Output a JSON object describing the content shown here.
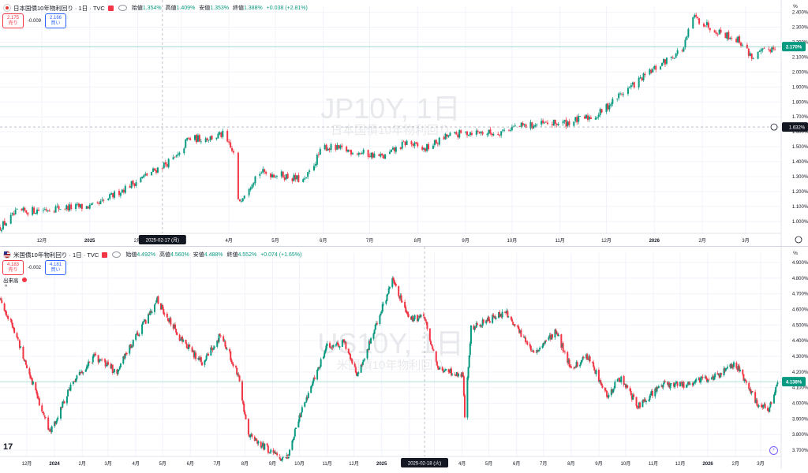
{
  "colors": {
    "up": "#089981",
    "down": "#f23645",
    "grid": "#f0f3fa",
    "axis": "#131722",
    "label_bg": "#131722",
    "crosshair": "#9598a1"
  },
  "chart_data": [
    {
      "type": "candlestick",
      "symbol": "JP10Y",
      "title": "日本国債10年物利回り · 1日 · TVC",
      "watermark": {
        "main": "JP10Y, 1日",
        "sub": "日本国債10年物利回り"
      },
      "legend": {
        "o_label": "始値",
        "o": "1.354%",
        "h_label": "高値",
        "h": "1.409%",
        "l_label": "安値",
        "l": "1.353%",
        "c_label": "終値",
        "c": "1.388%",
        "change": "+0.038 (+2.81%)"
      },
      "quotes": {
        "sell_value": "2.175",
        "sell_label": "売り",
        "spread": "-0.009",
        "buy_value": "2.166",
        "buy_label": "買い"
      },
      "y_unit": "%",
      "ylim": [
        0.92,
        2.44
      ],
      "y_ticks": [
        "2.400%",
        "2.300%",
        "2.200%",
        "2.100%",
        "2.000%",
        "1.900%",
        "1.800%",
        "1.700%",
        "1.600%",
        "1.500%",
        "1.400%",
        "1.300%",
        "1.200%",
        "1.100%",
        "1.000%"
      ],
      "y_tick_values": [
        2.4,
        2.3,
        2.2,
        2.1,
        2.0,
        1.9,
        1.8,
        1.7,
        1.6,
        1.5,
        1.4,
        1.3,
        1.2,
        1.1,
        1.0
      ],
      "x_ticks": [
        "12月",
        "2025",
        "2月",
        "3月",
        "4月",
        "5月",
        "6月",
        "7月",
        "8月",
        "9月",
        "10月",
        "11月",
        "12月",
        "2026",
        "2月",
        "3月"
      ],
      "x_tick_dates": [
        "2024-12-01",
        "2025-01-01",
        "2025-02-01",
        "2025-03-01",
        "2025-04-01",
        "2025-05-01",
        "2025-06-01",
        "2025-07-01",
        "2025-08-01",
        "2025-09-01",
        "2025-10-01",
        "2025-11-01",
        "2025-12-01",
        "2026-01-01",
        "2026-02-01",
        "2026-03-01"
      ],
      "x_range": [
        "2024-11-04",
        "2026-03-24"
      ],
      "crosshair": {
        "date_label": "2025-02-17 (月)",
        "date": "2025-02-17",
        "price_label": "1.632%",
        "price": 1.632
      },
      "last_price": {
        "label": "2.170%",
        "value": 2.17
      },
      "path_dates": [
        "2024-11-04",
        "2024-11-15",
        "2024-12-10",
        "2025-01-05",
        "2025-01-20",
        "2025-02-10",
        "2025-02-28",
        "2025-03-05",
        "2025-03-20",
        "2025-03-28",
        "2025-04-04",
        "2025-04-07",
        "2025-04-20",
        "2025-05-05",
        "2025-05-20",
        "2025-06-01",
        "2025-06-20",
        "2025-07-10",
        "2025-07-25",
        "2025-08-05",
        "2025-08-20",
        "2025-09-05",
        "2025-09-20",
        "2025-10-01",
        "2025-10-20",
        "2025-11-05",
        "2025-11-25",
        "2025-12-10",
        "2026-01-05",
        "2026-01-20",
        "2026-01-26",
        "2026-02-10",
        "2026-02-25",
        "2026-03-05",
        "2026-03-20"
      ],
      "path_values": [
        0.96,
        1.06,
        1.09,
        1.1,
        1.2,
        1.33,
        1.44,
        1.55,
        1.56,
        1.58,
        1.45,
        1.13,
        1.33,
        1.31,
        1.27,
        1.5,
        1.47,
        1.43,
        1.53,
        1.48,
        1.57,
        1.6,
        1.59,
        1.63,
        1.65,
        1.66,
        1.71,
        1.85,
        2.05,
        2.16,
        2.37,
        2.28,
        2.21,
        2.1,
        2.17
      ]
    },
    {
      "type": "candlestick",
      "symbol": "US10Y",
      "title": "米国債10年物利回り · 1日 · TVC",
      "watermark": {
        "main": "US10Y, 1日",
        "sub": "米国債10年物利回り"
      },
      "legend": {
        "o_label": "始値",
        "o": "4.492%",
        "h_label": "高値",
        "h": "4.560%",
        "l_label": "安値",
        "l": "4.488%",
        "c_label": "終値",
        "c": "4.552%",
        "change": "+0.074 (+1.65%)"
      },
      "quotes": {
        "sell_value": "4.183",
        "sell_label": "売り",
        "spread": "-0.002",
        "buy_value": "4.181",
        "buy_label": "買い"
      },
      "volume_label": "出来高",
      "y_unit": "%",
      "ylim": [
        3.66,
        4.96
      ],
      "y_ticks": [
        "4.900%",
        "4.800%",
        "4.700%",
        "4.600%",
        "4.500%",
        "4.400%",
        "4.300%",
        "4.200%",
        "4.100%",
        "4.000%",
        "3.900%",
        "3.800%",
        "3.700%"
      ],
      "y_tick_values": [
        4.9,
        4.8,
        4.7,
        4.6,
        4.5,
        4.4,
        4.3,
        4.2,
        4.1,
        4.0,
        3.9,
        3.8,
        3.7
      ],
      "x_ticks": [
        "12月",
        "2024",
        "2月",
        "3月",
        "4月",
        "5月",
        "6月",
        "7月",
        "8月",
        "9月",
        "10月",
        "11月",
        "12月",
        "2025",
        "2月",
        "3月",
        "4月",
        "5月",
        "6月",
        "7月",
        "8月",
        "9月",
        "10月",
        "11月",
        "12月",
        "2026",
        "2月",
        "3月"
      ],
      "x_tick_dates": [
        "2023-12-01",
        "2024-01-01",
        "2024-02-01",
        "2024-03-01",
        "2024-04-01",
        "2024-05-01",
        "2024-06-01",
        "2024-07-01",
        "2024-08-01",
        "2024-09-01",
        "2024-10-01",
        "2024-11-01",
        "2024-12-01",
        "2025-01-01",
        "2025-02-01",
        "2025-03-01",
        "2025-04-01",
        "2025-05-01",
        "2025-06-01",
        "2025-07-01",
        "2025-08-01",
        "2025-09-01",
        "2025-10-01",
        "2025-11-01",
        "2025-12-01",
        "2026-01-01",
        "2026-02-01",
        "2026-03-01"
      ],
      "x_range": [
        "2023-11-01",
        "2026-03-24"
      ],
      "crosshair": {
        "date_label": "2025-02-18 (火)",
        "date": "2025-02-18"
      },
      "last_price": {
        "label": "4.138%",
        "value": 4.138
      },
      "path_dates": [
        "2023-11-01",
        "2023-11-20",
        "2023-12-27",
        "2024-01-20",
        "2024-02-15",
        "2024-03-10",
        "2024-04-25",
        "2024-05-20",
        "2024-06-15",
        "2024-07-05",
        "2024-07-25",
        "2024-08-05",
        "2024-09-16",
        "2024-10-05",
        "2024-11-01",
        "2024-11-20",
        "2024-12-05",
        "2025-01-13",
        "2025-02-01",
        "2025-02-18",
        "2025-03-05",
        "2025-04-02",
        "2025-04-04",
        "2025-04-11",
        "2025-05-20",
        "2025-06-20",
        "2025-07-15",
        "2025-08-01",
        "2025-08-20",
        "2025-09-10",
        "2025-09-25",
        "2025-10-15",
        "2025-11-10",
        "2025-12-05",
        "2026-01-10",
        "2026-02-01",
        "2026-02-25",
        "2026-03-10",
        "2026-03-20"
      ],
      "path_values": [
        4.67,
        4.42,
        3.81,
        4.12,
        4.3,
        4.2,
        4.66,
        4.42,
        4.25,
        4.44,
        4.18,
        3.79,
        3.63,
        3.98,
        4.36,
        4.39,
        4.18,
        4.78,
        4.54,
        4.55,
        4.22,
        4.18,
        3.92,
        4.48,
        4.58,
        4.32,
        4.46,
        4.22,
        4.3,
        4.05,
        4.16,
        3.98,
        4.12,
        4.12,
        4.17,
        4.25,
        4.0,
        3.96,
        4.14
      ]
    }
  ]
}
